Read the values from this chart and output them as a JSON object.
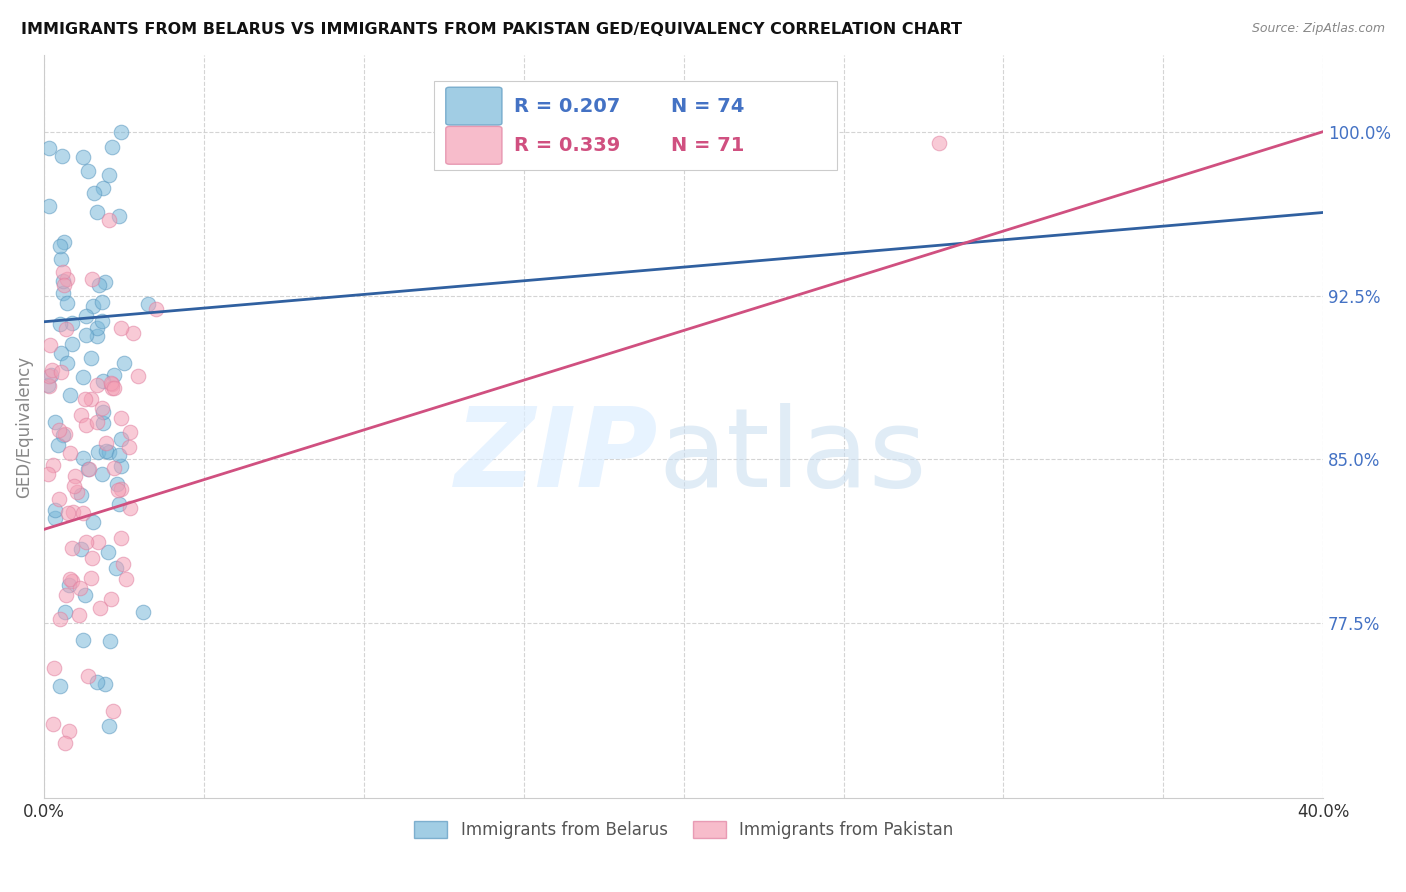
{
  "title": "IMMIGRANTS FROM BELARUS VS IMMIGRANTS FROM PAKISTAN GED/EQUIVALENCY CORRELATION CHART",
  "source": "Source: ZipAtlas.com",
  "ylabel": "GED/Equivalency",
  "legend_blue_label": "Immigrants from Belarus",
  "legend_pink_label": "Immigrants from Pakistan",
  "legend_R_blue": "R = 0.207",
  "legend_N_blue": "N = 74",
  "legend_R_pink": "R = 0.339",
  "legend_N_pink": "N = 71",
  "blue_color": "#7ab8d9",
  "pink_color": "#f4a0b5",
  "blue_line_color": "#3060a0",
  "pink_line_color": "#d05080",
  "blue_edge_color": "#5a98c0",
  "pink_edge_color": "#e080a0",
  "xlim": [
    0.0,
    0.4
  ],
  "ylim": [
    0.695,
    1.035
  ],
  "yticks": [
    0.775,
    0.85,
    0.925,
    1.0
  ],
  "ytick_labels": [
    "77.5%",
    "85.0%",
    "92.5%",
    "100.0%"
  ],
  "xticks": [
    0.0,
    0.05,
    0.1,
    0.15,
    0.2,
    0.25,
    0.3,
    0.35,
    0.4
  ],
  "xtick_labels": [
    "0.0%",
    "",
    "",
    "",
    "",
    "",
    "",
    "",
    "40.0%"
  ],
  "blue_line_x0": 0.0,
  "blue_line_y0": 0.913,
  "blue_line_x1": 0.4,
  "blue_line_y1": 0.963,
  "pink_line_x0": 0.0,
  "pink_line_y0": 0.818,
  "pink_line_x1": 0.4,
  "pink_line_y1": 1.0
}
